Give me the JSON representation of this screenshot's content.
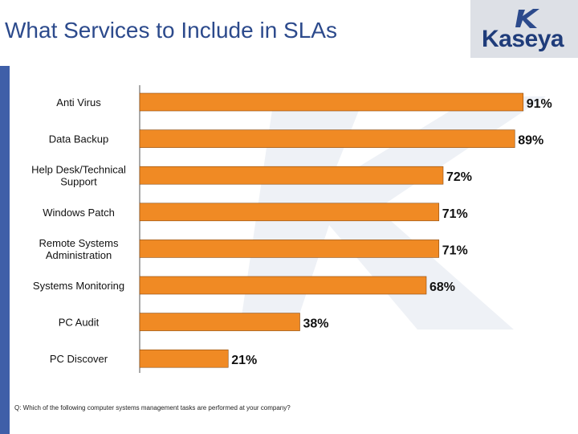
{
  "slide": {
    "title": "What Services to Include in SLAs",
    "logo_text": "Kaseya",
    "footnote": "Q: Which of the following computer systems management tasks are performed at your company?"
  },
  "colors": {
    "bar": "#f08a24",
    "bar_stroke": "#8a4a0e",
    "frame": "#3f5fa8",
    "title": "#2c4a8c",
    "logo_bg": "#dde0e6"
  },
  "chart_data": {
    "type": "bar",
    "orientation": "horizontal",
    "categories": [
      [
        "Anti Virus"
      ],
      [
        "Data Backup"
      ],
      [
        "Help Desk/Technical",
        "Support"
      ],
      [
        "Windows Patch"
      ],
      [
        "Remote Systems",
        "Administration"
      ],
      [
        "Systems Monitoring"
      ],
      [
        "PC Audit"
      ],
      [
        "PC Discover"
      ]
    ],
    "values": [
      91,
      89,
      72,
      71,
      71,
      68,
      38,
      21
    ],
    "data_labels": [
      "91%",
      "89%",
      "72%",
      "71%",
      "71%",
      "68%",
      "38%",
      "21%"
    ],
    "xlim": [
      0,
      100
    ],
    "title": "",
    "xlabel": "",
    "ylabel": "",
    "grid": false,
    "legend": "none"
  }
}
